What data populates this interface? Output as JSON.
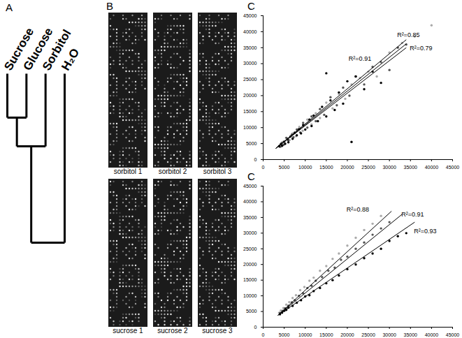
{
  "chart_data": [
    {
      "type": "dendrogram",
      "title": "A",
      "leaves": [
        "Sucrose",
        "Glucose",
        "Sorbitol",
        "H₂O"
      ],
      "merges": [
        {
          "members": [
            "Sucrose",
            "Glucose"
          ],
          "height": 0.26
        },
        {
          "members": [
            "Sucrose",
            "Glucose",
            "Sorbitol"
          ],
          "height": 0.43
        },
        {
          "members": [
            "Sucrose",
            "Glucose",
            "Sorbitol",
            "H₂O"
          ],
          "height": 1
        }
      ],
      "tick_labels": false
    },
    {
      "type": "image_grid",
      "title": "B",
      "panels": [
        "sorbitol 1",
        "sorbitol 2",
        "sorbitol 3",
        "sucrose 1",
        "sucrose 2",
        "sucrose 3"
      ]
    },
    {
      "type": "scatter",
      "title": "C",
      "xlim": [
        0,
        45000
      ],
      "ylim": [
        0,
        45000
      ],
      "xticks": [
        0,
        5000,
        10000,
        15000,
        20000,
        25000,
        30000,
        35000,
        40000,
        45000
      ],
      "yticks": [
        0,
        5000,
        10000,
        15000,
        20000,
        25000,
        30000,
        35000,
        40000,
        45000
      ],
      "series": [
        {
          "color": "#aaaaaa",
          "x": [
            3900,
            4300,
            4700,
            5300,
            5700,
            6300,
            7000,
            7800,
            8600,
            9400,
            10500,
            11500,
            12500,
            13500,
            15000,
            16500,
            18000,
            19500,
            21000,
            23000,
            25000,
            27000,
            30000,
            33000,
            36000,
            40000
          ],
          "y": [
            4400,
            4100,
            5500,
            5000,
            6700,
            6100,
            8200,
            7300,
            10200,
            9000,
            12500,
            11000,
            14500,
            13000,
            17800,
            16000,
            20500,
            19000,
            23500,
            25500,
            27500,
            26000,
            33500,
            36500,
            38500,
            42000
          ],
          "fit": [
            [
              3000,
              3500
            ],
            [
              34000,
              36200
            ]
          ],
          "fit_label": {
            "text": "R²=0.91",
            "x": 23000,
            "y": 31500
          }
        },
        {
          "color": "#555555",
          "x": [
            4000,
            4400,
            4800,
            5500,
            6000,
            6800,
            7200,
            8000,
            8800,
            9500,
            10500,
            11500,
            12500,
            13500,
            14500,
            16000,
            17500,
            19000,
            20500,
            22000,
            24000,
            26000,
            28000,
            30000,
            32000,
            34000
          ],
          "y": [
            4000,
            5200,
            4600,
            6800,
            6000,
            7800,
            7000,
            9400,
            8500,
            11500,
            10000,
            13500,
            12000,
            15800,
            14000,
            19500,
            17000,
            22500,
            20000,
            26000,
            23500,
            29000,
            30500,
            28000,
            35000,
            36000
          ],
          "fit": [
            [
              3000,
              3500
            ],
            [
              34000,
              37500
            ]
          ],
          "fit_label": {
            "text": "R²=0.85",
            "x": 34500,
            "y": 39000
          }
        },
        {
          "color": "#000000",
          "x": [
            3800,
            4200,
            4500,
            5000,
            5200,
            5800,
            6000,
            6500,
            7000,
            7500,
            8000,
            8500,
            9000,
            9500,
            10000,
            11000,
            11500,
            12000,
            13000,
            14000,
            15000,
            16000,
            17000,
            18000,
            19000,
            20000,
            21000,
            22000,
            24000,
            26000,
            28000,
            15000
          ],
          "y": [
            4200,
            4800,
            4300,
            5600,
            4900,
            6300,
            5400,
            7200,
            6500,
            8400,
            7600,
            9500,
            8200,
            10800,
            9400,
            12500,
            10500,
            13800,
            12000,
            16500,
            13500,
            18500,
            15500,
            21000,
            17500,
            24500,
            5500,
            26000,
            22000,
            27500,
            24000,
            27000
          ],
          "fit": [
            [
              3000,
              3500
            ],
            [
              34000,
              35000
            ]
          ],
          "fit_label": {
            "text": "R²=0.79",
            "x": 37500,
            "y": 34800
          }
        }
      ]
    },
    {
      "type": "scatter",
      "title": "C",
      "xlim": [
        0,
        45000
      ],
      "ylim": [
        0,
        45000
      ],
      "xticks": [
        0,
        5000,
        10000,
        15000,
        20000,
        25000,
        30000,
        35000,
        40000,
        45000
      ],
      "yticks": [
        0,
        5000,
        10000,
        15000,
        20000,
        25000,
        30000,
        35000,
        40000,
        45000
      ],
      "series": [
        {
          "color": "#aaaaaa",
          "x": [
            3800,
            4200,
            4800,
            5500,
            6200,
            7000,
            7800,
            8800,
            9800,
            11000,
            12000,
            13500,
            15000,
            16500,
            18000,
            20000,
            22000,
            24000,
            26000,
            28000
          ],
          "y": [
            4600,
            5300,
            6100,
            7200,
            8000,
            9300,
            10200,
            11800,
            12800,
            14800,
            15800,
            18000,
            19500,
            21800,
            23500,
            26000,
            28500,
            31000,
            33000,
            35500
          ],
          "fit": [
            [
              3500,
              3800
            ],
            [
              30500,
              37000
            ]
          ],
          "fit_label": {
            "text": "R²=0.88",
            "x": 22500,
            "y": 37500
          }
        },
        {
          "color": "#555555",
          "x": [
            4000,
            4600,
            5200,
            6000,
            6800,
            7500,
            8500,
            9500,
            10500,
            11500,
            12500,
            14000,
            15500,
            17000,
            18500,
            20000,
            22000,
            24000,
            26000,
            28000,
            30000
          ],
          "y": [
            4500,
            5200,
            6000,
            6800,
            7900,
            8600,
            10000,
            10800,
            12500,
            13200,
            14800,
            16000,
            18000,
            19000,
            21500,
            22500,
            25000,
            27000,
            29500,
            31500,
            33500
          ],
          "fit": [
            [
              3500,
              3800
            ],
            [
              33000,
              36000
            ]
          ],
          "fit_label": {
            "text": "R²=0.91",
            "x": 35500,
            "y": 36000
          }
        },
        {
          "color": "#000000",
          "x": [
            4000,
            4500,
            5000,
            5500,
            6000,
            7000,
            8000,
            9000,
            10000,
            11000,
            12000,
            13500,
            15000,
            16500,
            18000,
            20000,
            22000,
            24000,
            26000,
            28000,
            30000,
            32000,
            34000
          ],
          "y": [
            4100,
            4600,
            5200,
            5500,
            6200,
            6800,
            7800,
            8600,
            9800,
            10200,
            11500,
            12500,
            14000,
            15000,
            16500,
            18500,
            20000,
            22000,
            23500,
            25000,
            27500,
            29000,
            30000
          ],
          "fit": [
            [
              3500,
              3800
            ],
            [
              36000,
              33500
            ]
          ],
          "fit_label": {
            "text": "R²=0.93",
            "x": 38500,
            "y": 30500
          }
        }
      ]
    }
  ]
}
